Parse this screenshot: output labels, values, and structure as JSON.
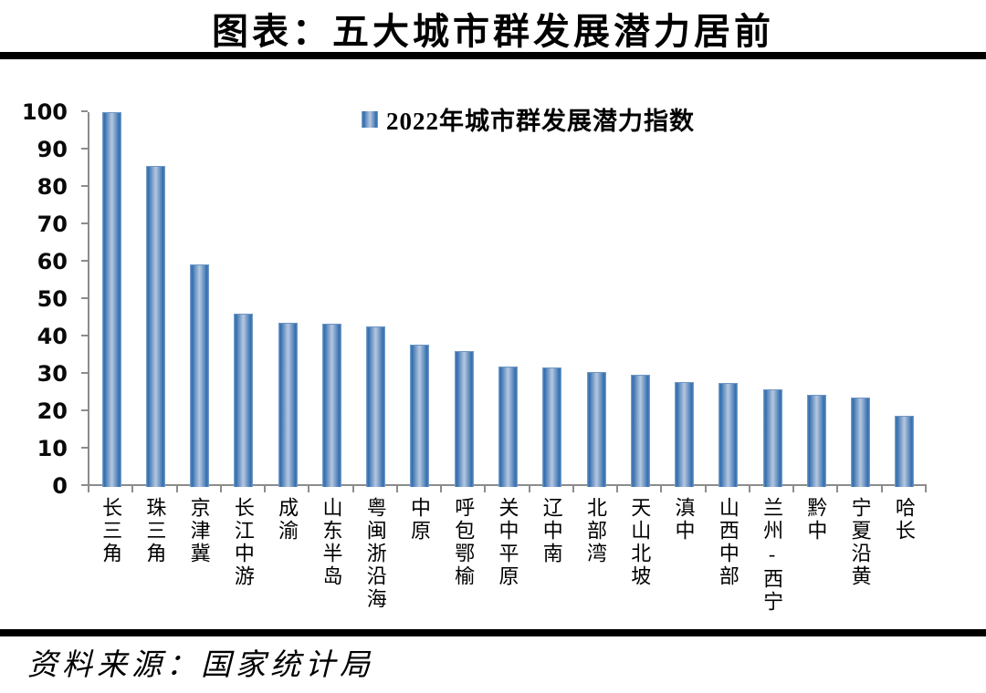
{
  "title": "图表：五大城市群发展潜力居前",
  "source": "资料来源：国家统计局",
  "colors": {
    "bar_edge": "#2F6CAD",
    "bar_center": "#B5C8E0",
    "bar_highlight": "#87A9CF",
    "axis": "#8C8C8C",
    "rule": "#000000",
    "text": "#000000"
  },
  "chart_data": {
    "type": "bar",
    "title": "图表：五大城市群发展潜力居前",
    "legend_label": "2022年城市群发展潜力指数",
    "legend_position": "top-center",
    "grid": false,
    "xlabel": "",
    "ylabel": "",
    "ylim": [
      0,
      100
    ],
    "yticks": [
      0,
      10,
      20,
      30,
      40,
      50,
      60,
      70,
      80,
      90,
      100
    ],
    "categories": [
      "长三角",
      "珠三角",
      "京津冀",
      "长江中游",
      "成渝",
      "山东半岛",
      "粤闽浙沿海",
      "中原",
      "呼包鄂榆",
      "关中平原",
      "辽中南",
      "北部湾",
      "天山北坡",
      "滇中",
      "山西中部",
      "兰州-西宁",
      "黔中",
      "宁夏沿黄",
      "哈长"
    ],
    "values": [
      100,
      85.6,
      59.2,
      46.2,
      43.7,
      43.3,
      42.6,
      37.7,
      36.1,
      31.9,
      31.7,
      30.4,
      29.7,
      27.9,
      27.5,
      25.8,
      24.3,
      23.6,
      18.9
    ]
  }
}
